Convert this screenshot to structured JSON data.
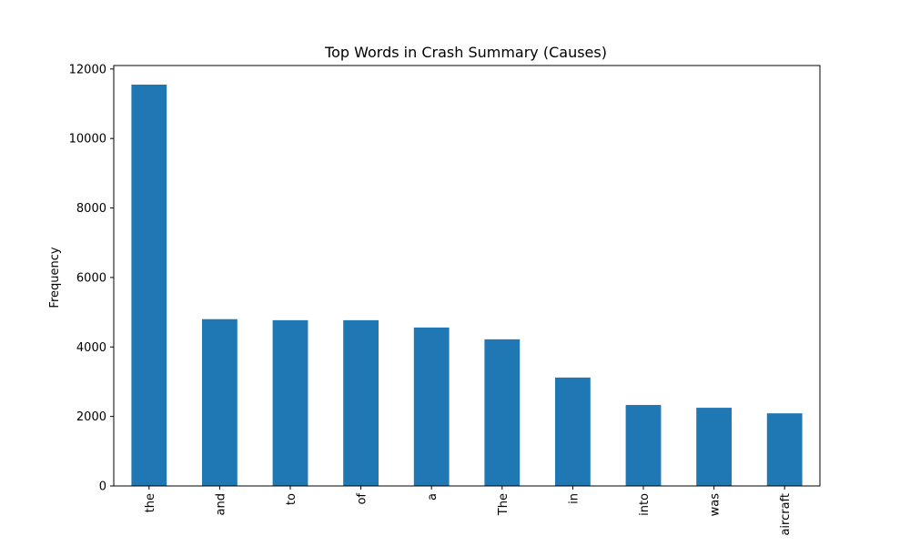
{
  "colors": {
    "bar": "#1f77b4",
    "axis": "#000000",
    "background": "#ffffff"
  },
  "chart_data": {
    "type": "bar",
    "title": "Top Words in Crash Summary (Causes)",
    "xlabel": "",
    "ylabel": "Frequency",
    "categories": [
      "the",
      "and",
      "to",
      "of",
      "a",
      "The",
      "in",
      "into",
      "was",
      "aircraft"
    ],
    "values": [
      11550,
      4800,
      4770,
      4770,
      4560,
      4220,
      3120,
      2330,
      2250,
      2090
    ],
    "ylim": [
      0,
      12100
    ],
    "yticks": [
      0,
      2000,
      4000,
      6000,
      8000,
      10000,
      12000
    ],
    "ytick_labels": [
      "0",
      "2000",
      "4000",
      "6000",
      "8000",
      "10000",
      "12000"
    ],
    "grid": false,
    "legend": "none"
  }
}
